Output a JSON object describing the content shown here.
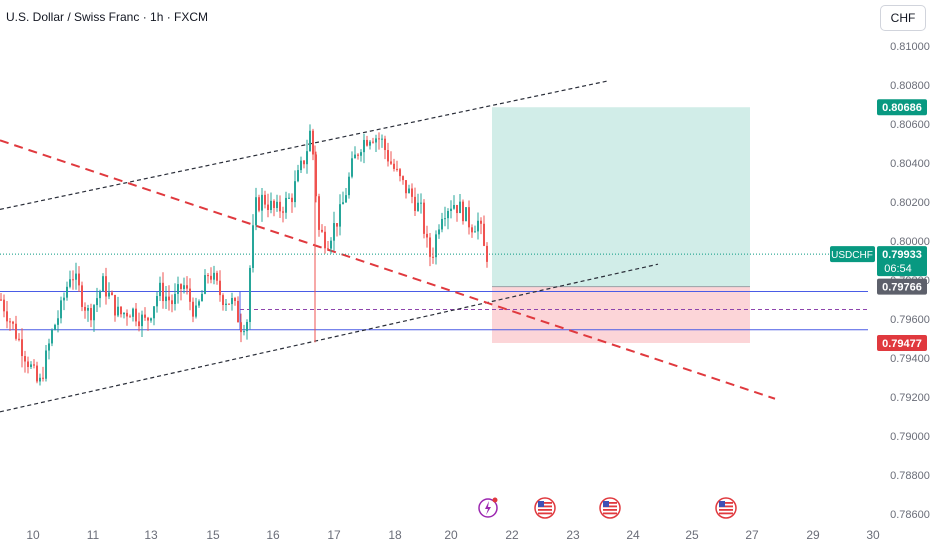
{
  "header": {
    "title": "U.S. Dollar / Swiss Franc · 1h · FXCM",
    "currency_button": "CHF"
  },
  "colors": {
    "up": "#26a69a",
    "down": "#ef5350",
    "profit_zone": "#d1ede8",
    "loss_zone": "#fcd5d8",
    "trendline_red": "#e0393e",
    "zone_border": "#4a5ce6",
    "symbol_badge": "#089981"
  },
  "chart_data": {
    "type": "candlestick",
    "symbol": "USDCHF",
    "timeframe": "1h",
    "ylim": [
      0.7855,
      0.8117
    ],
    "y_ticks": [
      "0.81000",
      "0.80800",
      "0.80600",
      "0.80400",
      "0.80200",
      "0.80000",
      "0.79800",
      "0.79600",
      "0.79400",
      "0.79200",
      "0.79000",
      "0.78800",
      "0.78600"
    ],
    "x_ticks": [
      "10",
      "11",
      "13",
      "15",
      "16",
      "17",
      "18",
      "20",
      "22",
      "23",
      "24",
      "25",
      "27",
      "29",
      "30"
    ],
    "grid": false,
    "last_price": "0.79933",
    "countdown": "06:54",
    "price_labels": {
      "target": "0.80686",
      "entry": "0.79766",
      "stop": "0.79477"
    },
    "anchor_closes": [
      [
        0,
        0.797
      ],
      [
        30,
        0.7935
      ],
      [
        38,
        0.7925
      ],
      [
        52,
        0.7955
      ],
      [
        60,
        0.7965
      ],
      [
        70,
        0.7985
      ],
      [
        88,
        0.7962
      ],
      [
        102,
        0.7978
      ],
      [
        118,
        0.7962
      ],
      [
        130,
        0.7965
      ],
      [
        145,
        0.7958
      ],
      [
        158,
        0.7975
      ],
      [
        172,
        0.7968
      ],
      [
        182,
        0.7978
      ],
      [
        195,
        0.7962
      ],
      [
        208,
        0.7985
      ],
      [
        220,
        0.7972
      ],
      [
        232,
        0.7968
      ],
      [
        240,
        0.7957
      ],
      [
        246,
        0.796
      ],
      [
        250,
        0.7995
      ],
      [
        255,
        0.8018
      ],
      [
        262,
        0.8022
      ],
      [
        275,
        0.8015
      ],
      [
        290,
        0.8022
      ],
      [
        305,
        0.8045
      ],
      [
        310,
        0.8058
      ],
      [
        318,
        0.8005
      ],
      [
        326,
        0.8
      ],
      [
        340,
        0.8015
      ],
      [
        352,
        0.804
      ],
      [
        360,
        0.805
      ],
      [
        370,
        0.8055
      ],
      [
        380,
        0.8052
      ],
      [
        388,
        0.8042
      ],
      [
        400,
        0.803
      ],
      [
        412,
        0.8022
      ],
      [
        420,
        0.8015
      ],
      [
        428,
        0.7992
      ],
      [
        432,
        0.7995
      ],
      [
        440,
        0.8015
      ],
      [
        452,
        0.802
      ],
      [
        462,
        0.8015
      ],
      [
        470,
        0.8008
      ],
      [
        478,
        0.801
      ],
      [
        484,
        0.7993
      ]
    ],
    "position": {
      "start_day": "20",
      "end_day": "27",
      "target": 0.80686,
      "entry": 0.79766,
      "stop": 0.79477
    },
    "trendlines": [
      {
        "style": "dashed",
        "color": "black",
        "from": [
          0,
          0.80162
        ],
        "to": [
          608,
          0.80821
        ]
      },
      {
        "style": "dashed",
        "color": "black",
        "from": [
          0,
          0.79124
        ],
        "to": [
          658,
          0.79881
        ]
      },
      {
        "style": "dashed",
        "color": "red",
        "from": [
          0,
          0.80516
        ],
        "to": [
          775,
          0.79191
        ]
      }
    ],
    "zone": {
      "top": 0.79741,
      "bottom": 0.79545,
      "mid": 0.79649
    }
  }
}
